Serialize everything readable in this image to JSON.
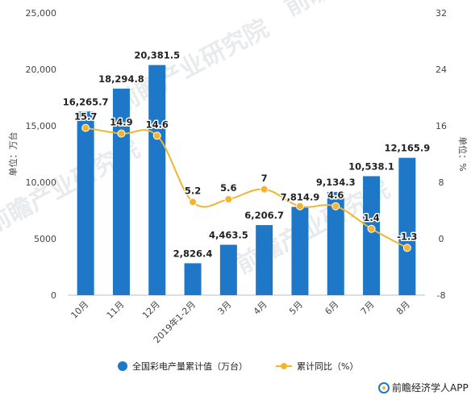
{
  "chart_data": {
    "type": "bar",
    "categories": [
      "10月",
      "11月",
      "12月",
      "2019年1-2月",
      "3月",
      "4月",
      "5月",
      "6月",
      "7月",
      "8月"
    ],
    "series": [
      {
        "name": "全国彩电产量累计值（万台）",
        "type": "bar",
        "axis": "left",
        "values": [
          16265.7,
          18294.8,
          20381.5,
          2826.4,
          4463.5,
          6206.7,
          7814.9,
          9134.3,
          10538.1,
          12165.9
        ],
        "labels": [
          "16,265.7",
          "18,294.8",
          "20,381.5",
          "2,826.4",
          "4,463.5",
          "6,206.7",
          "7,814.9",
          "9,134.3",
          "10,538.1",
          "12,165.9"
        ],
        "color": "#1f77c8"
      },
      {
        "name": "累计同比（%）",
        "type": "line",
        "axis": "right",
        "values": [
          15.7,
          14.9,
          14.6,
          5.2,
          5.6,
          7,
          4.6,
          4.6,
          1.4,
          -1.3
        ],
        "labels": [
          "15.7",
          "14.9",
          "14.6",
          "5.2",
          "5.6",
          "7",
          "",
          "4.6",
          "1.4",
          "-1.3"
        ],
        "color": "#f2b531"
      }
    ],
    "ylabel": "单位：万台",
    "y2label": "单位：%",
    "ylim": [
      0,
      25000
    ],
    "y2lim": [
      -8,
      32
    ],
    "yticks": [
      "0",
      "5000",
      "10,000",
      "15,000",
      "20,000",
      "25,000"
    ],
    "y2ticks": [
      "-8",
      "0",
      "8",
      "16",
      "24",
      "32"
    ],
    "grid": false,
    "legend_position": "bottom"
  },
  "watermark": "前瞻产业研究院",
  "footer": {
    "text": "前瞻经济学人APP"
  }
}
